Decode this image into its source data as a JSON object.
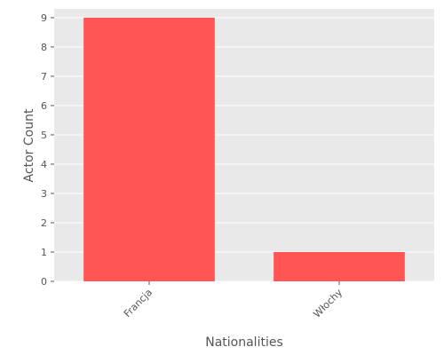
{
  "chart_data": {
    "type": "bar",
    "title": "",
    "xlabel": "Nationalities",
    "ylabel": "Actor Count",
    "categories": [
      "Francja",
      "Włochy"
    ],
    "values": [
      9,
      1
    ],
    "ylim": [
      0,
      9.3
    ],
    "yticks": [
      0,
      1,
      2,
      3,
      4,
      5,
      6,
      7,
      8,
      9
    ],
    "grid": true,
    "legend": "none",
    "bar_color": "#ff5555",
    "background_color": "#e9e9e9",
    "grid_color": "#ffffff"
  }
}
